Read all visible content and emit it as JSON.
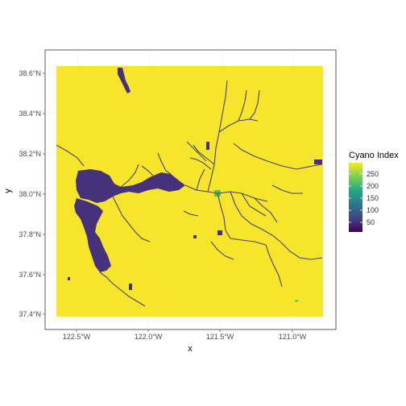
{
  "map": {
    "xlabel": "x",
    "ylabel": "y",
    "x_ticks": [
      "122.5°W",
      "122.0°W",
      "121.5°W",
      "121.0°W"
    ],
    "y_ticks": [
      "38.6°N",
      "38.4°N",
      "38.2°N",
      "38.0°N",
      "37.8°N",
      "37.6°N",
      "37.4°N"
    ],
    "colorbar": {
      "title": "Cyano Index",
      "labels": [
        "250",
        "200",
        "150",
        "100",
        "50"
      ],
      "colors": [
        "#fde725",
        "#7ad151",
        "#22a884",
        "#2a788e",
        "#414487",
        "#440154"
      ]
    },
    "background_color": "#f6e52a",
    "water_color": "#46317c",
    "grid": true,
    "legend_position": "right"
  }
}
